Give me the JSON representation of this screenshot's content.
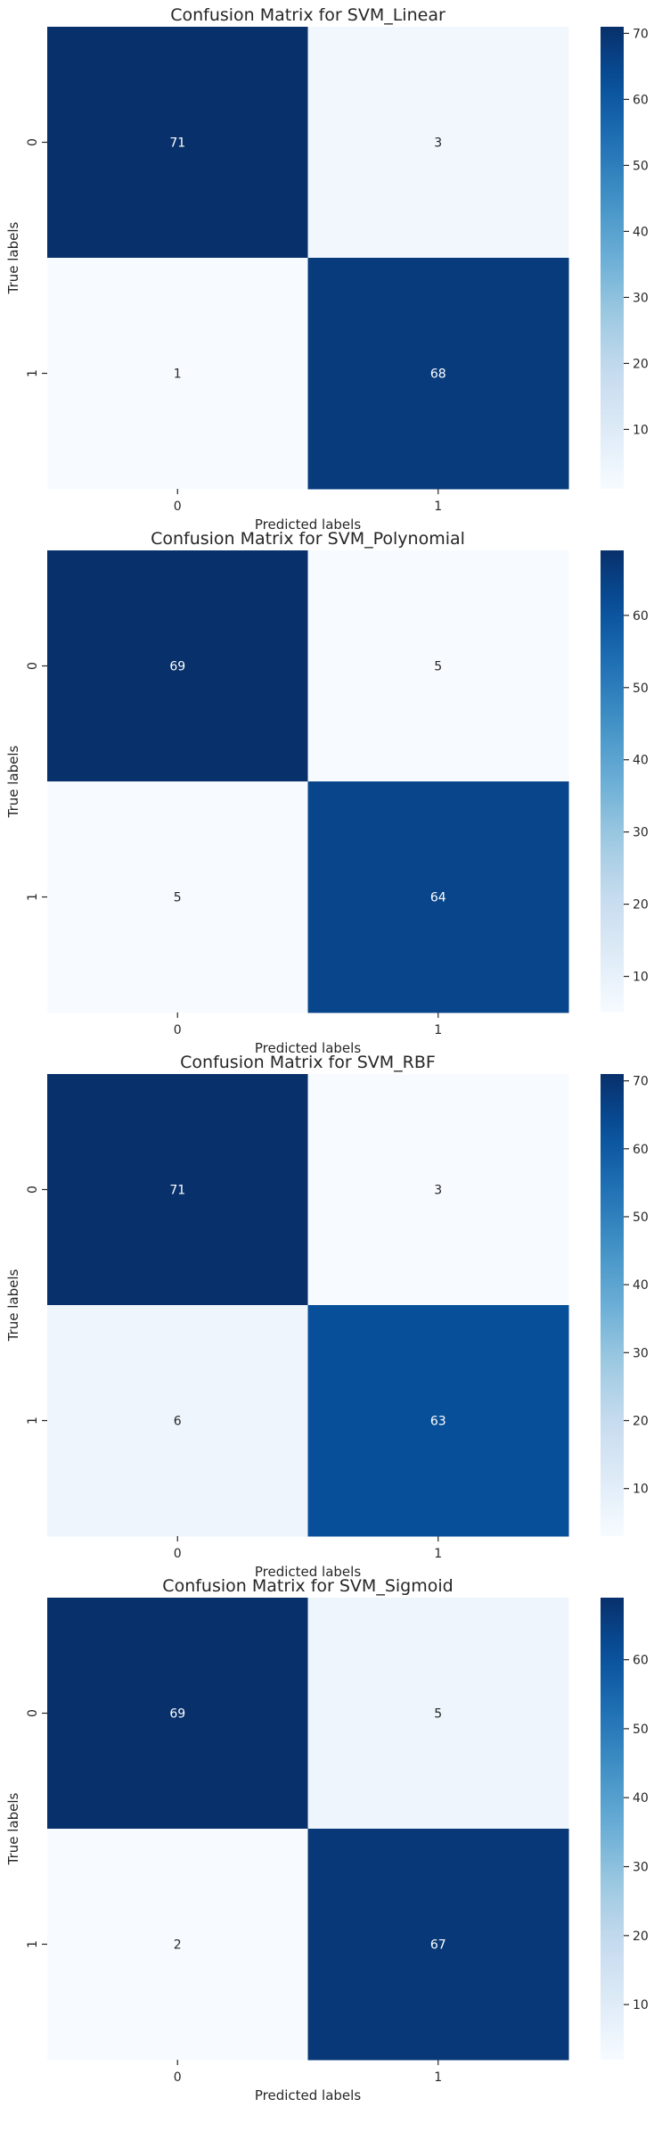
{
  "chart_data": [
    {
      "type": "heatmap",
      "title": "Confusion Matrix for SVM_Linear",
      "xlabel": "Predicted labels",
      "ylabel": "True labels",
      "x_categories": [
        "0",
        "1"
      ],
      "y_categories": [
        "0",
        "1"
      ],
      "values": [
        [
          71,
          3
        ],
        [
          1,
          68
        ]
      ],
      "colormap": "Blues",
      "colorbar": {
        "min": 1,
        "max": 71,
        "ticks": [
          10,
          20,
          30,
          40,
          50,
          60,
          70
        ]
      }
    },
    {
      "type": "heatmap",
      "title": "Confusion Matrix for SVM_Polynomial",
      "xlabel": "Predicted labels",
      "ylabel": "True labels",
      "x_categories": [
        "0",
        "1"
      ],
      "y_categories": [
        "0",
        "1"
      ],
      "values": [
        [
          69,
          5
        ],
        [
          5,
          64
        ]
      ],
      "colormap": "Blues",
      "colorbar": {
        "min": 5,
        "max": 69,
        "ticks": [
          10,
          20,
          30,
          40,
          50,
          60
        ]
      }
    },
    {
      "type": "heatmap",
      "title": "Confusion Matrix for SVM_RBF",
      "xlabel": "Predicted labels",
      "ylabel": "True labels",
      "x_categories": [
        "0",
        "1"
      ],
      "y_categories": [
        "0",
        "1"
      ],
      "values": [
        [
          71,
          3
        ],
        [
          6,
          63
        ]
      ],
      "colormap": "Blues",
      "colorbar": {
        "min": 3,
        "max": 71,
        "ticks": [
          10,
          20,
          30,
          40,
          50,
          60,
          70
        ]
      }
    },
    {
      "type": "heatmap",
      "title": "Confusion Matrix for SVM_Sigmoid",
      "xlabel": "Predicted labels",
      "ylabel": "True labels",
      "x_categories": [
        "0",
        "1"
      ],
      "y_categories": [
        "0",
        "1"
      ],
      "values": [
        [
          69,
          5
        ],
        [
          2,
          67
        ]
      ],
      "colormap": "Blues",
      "colorbar": {
        "min": 2,
        "max": 69,
        "ticks": [
          10,
          20,
          30,
          40,
          50,
          60
        ]
      }
    }
  ]
}
